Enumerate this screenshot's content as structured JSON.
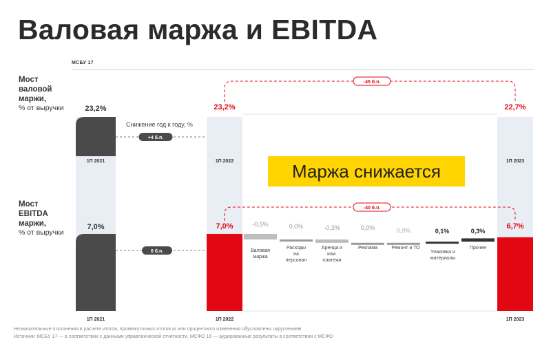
{
  "page": {
    "title": "Валовая маржа и EBITDA",
    "standard_label": "МСБУ 17",
    "gross_block": {
      "heading": [
        "Мост",
        "валовой",
        "маржи,"
      ],
      "sub": "% от выручки"
    },
    "ebitda_block": {
      "heading": [
        "Мост",
        "EBITDA",
        "маржи,"
      ],
      "sub": "% от выручки"
    },
    "yoy_note": "Снижение год к году, %",
    "banner": "Маржа снижается",
    "footnote_1": "Незначительные отклонения в расчете итогов, промежуточных итогов и/ или процентного изменения обусловлены округлением",
    "footnote_2": "Источник: МСБУ 17 — в соответствии с данными управленческой отчетности,  МСФО 16 — аудированные результаты в соответствии с МСФО",
    "colors": {
      "accent_red": "#e30613",
      "dark_bar": "#4a4a4a",
      "banner_yellow": "#ffd400",
      "light_column": "#e9eef4"
    }
  },
  "chart_data": [
    {
      "type": "bar",
      "title": "Мост валовой маржи, % от выручки",
      "categories": [
        "1П 2021",
        "1П 2022",
        "1П 2023"
      ],
      "values": [
        23.2,
        23.2,
        22.7
      ],
      "value_labels": [
        "23,2%",
        "23,2%",
        "22,7%"
      ],
      "annotations": {
        "yoy_2021_2022": "+4 б.п.",
        "yoy_2022_2023": "-45 б.п."
      }
    },
    {
      "type": "bar",
      "title": "Мост EBITDA маржи, % от выручки",
      "categories": [
        "1П 2021",
        "1П 2022",
        "Валовая маржа",
        "Расходы на персонал",
        "Аренда и ком. платежи",
        "Реклама",
        "Ремонт и ТО",
        "Упаковка и материалы",
        "Прочее",
        "1П 2023"
      ],
      "category_labels": [
        [
          "1П 2021"
        ],
        [
          "1П 2022"
        ],
        [
          "Валовая",
          "маржа"
        ],
        [
          "Расходы",
          "на",
          "персонал"
        ],
        [
          "Аренда и",
          "ком.",
          "платежи"
        ],
        [
          "Реклама"
        ],
        [
          "Ремонт и ТО"
        ],
        [
          "Упаковка и",
          "материалы"
        ],
        [
          "Прочее"
        ],
        [
          "1П 2023"
        ]
      ],
      "values": [
        7.0,
        7.0,
        -0.5,
        0.0,
        -0.3,
        0.0,
        0.0,
        0.1,
        0.3,
        6.7
      ],
      "value_labels": [
        "7,0%",
        "7,0%",
        "-0,5%",
        "0,0%",
        "-0,3%",
        "0,0%",
        "0,0%",
        "0,1%",
        "0,3%",
        "6,7%"
      ],
      "annotations": {
        "yoy_2021_2022": "0 б.п.",
        "yoy_2022_2023": "-40 б.п."
      }
    }
  ]
}
